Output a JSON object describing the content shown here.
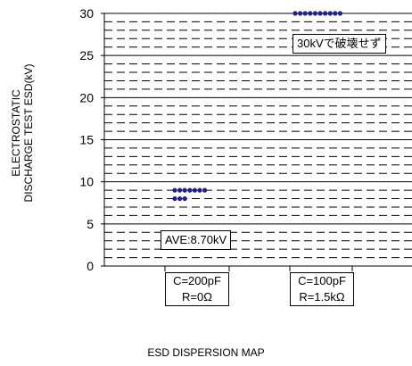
{
  "chart_data": {
    "type": "scatter",
    "ylabel": [
      "ELECTROSTATIC",
      "DISCHARGE TEST ESD(kV)"
    ],
    "ylim": [
      0,
      30
    ],
    "yticks": [
      0,
      5,
      10,
      15,
      20,
      25,
      30
    ],
    "grid": "dashed horizontal lines every 1 kV, solid lines every 5 kV",
    "marker_color": "#1f1f8f",
    "categories": [
      {
        "line1": "C=200pF",
        "line2": "R=0Ω"
      },
      {
        "line1": "C=100pF",
        "line2": "R=1.5kΩ"
      }
    ],
    "series": [
      {
        "category": 0,
        "rows": [
          {
            "y": 9,
            "count": 7
          },
          {
            "y": 8,
            "count": 3
          }
        ]
      },
      {
        "category": 1,
        "rows": [
          {
            "y": 30,
            "count": 10
          }
        ]
      }
    ],
    "annotations": [
      {
        "id": "ave",
        "text": "AVE:8.70kV"
      },
      {
        "id": "nobreak",
        "text": "30kVで破壊せず"
      }
    ],
    "caption": "ESD DISPERSION MAP"
  }
}
